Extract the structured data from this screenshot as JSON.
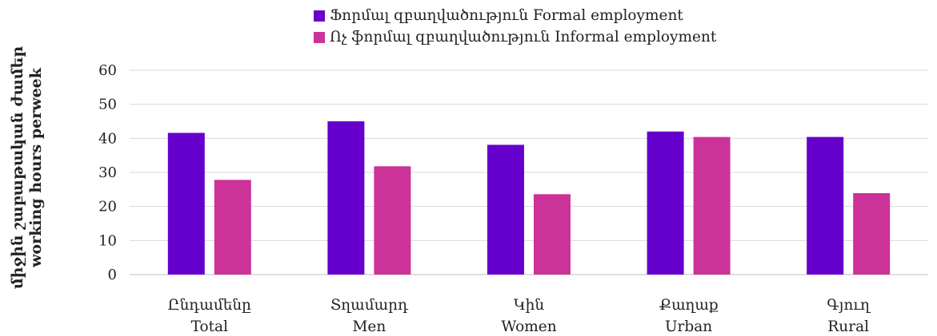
{
  "chart_data": {
    "type": "bar",
    "categories": [
      {
        "hy": "Ընդամենը",
        "en": "Total"
      },
      {
        "hy": "Տղամարդ",
        "en": "Men"
      },
      {
        "hy": "Կին",
        "en": "Women"
      },
      {
        "hy": "Քաղաք",
        "en": "Urban"
      },
      {
        "hy": "Գյուղ",
        "en": "Rural"
      }
    ],
    "series": [
      {
        "name": "Ֆորմալ զբաղվածություն  Formal employment",
        "color": "#6600cc",
        "values": [
          41.6,
          45.0,
          38.1,
          42.0,
          40.4
        ]
      },
      {
        "name": "Ոչ ֆորմալ զբաղվածություն  Informal employment",
        "color": "#cc3399",
        "values": [
          27.8,
          31.8,
          23.6,
          40.4,
          23.9
        ]
      }
    ],
    "ylabel": [
      "միջին շաբաթական ժամեր",
      "working hours perweek"
    ],
    "ylim": [
      0,
      60
    ],
    "yticks": [
      0,
      10,
      20,
      30,
      40,
      50,
      60
    ],
    "grid": true,
    "legend_position": "top"
  }
}
